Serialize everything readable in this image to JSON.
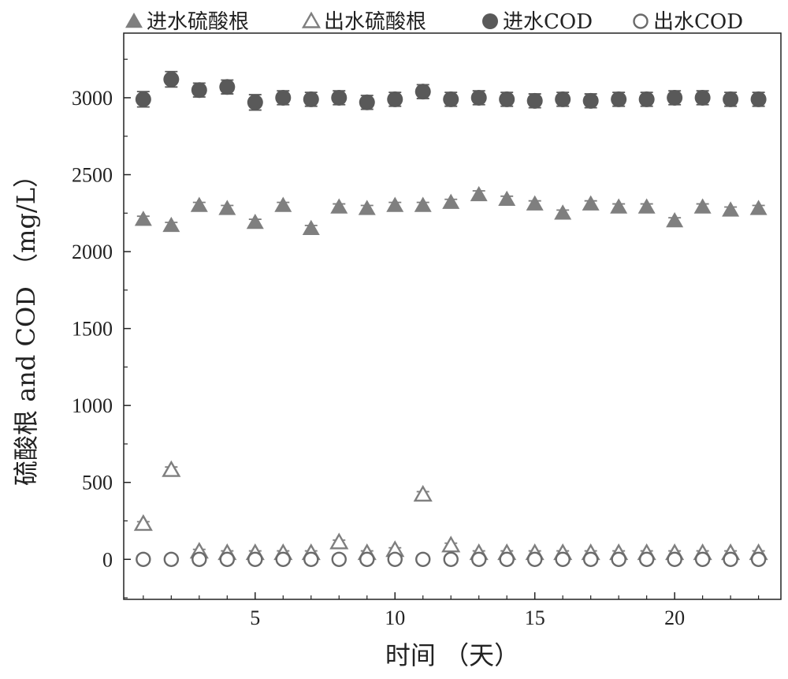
{
  "chart_data": {
    "type": "scatter",
    "xlabel": "时间 （天）",
    "ylabel": "硫酸根 and COD （mg/L）",
    "xlim": [
      0.3,
      23.8
    ],
    "ylim": [
      -260,
      3420
    ],
    "x_ticks": [
      5,
      10,
      15,
      20
    ],
    "y_ticks": [
      0,
      500,
      1000,
      1500,
      2000,
      2500,
      3000
    ],
    "grid": false,
    "legend_placement": "top",
    "x": [
      1,
      2,
      3,
      4,
      5,
      6,
      7,
      8,
      9,
      10,
      11,
      12,
      13,
      14,
      15,
      16,
      17,
      18,
      19,
      20,
      21,
      22,
      23
    ],
    "series": [
      {
        "name": "进水硫酸根",
        "marker": "triangle-filled",
        "color": "#7f7f7f",
        "values": [
          2210,
          2170,
          2300,
          2280,
          2190,
          2300,
          2150,
          2290,
          2280,
          2300,
          2300,
          2320,
          2370,
          2340,
          2310,
          2250,
          2310,
          2290,
          2290,
          2200,
          2290,
          2270,
          2280
        ],
        "errors": [
          20,
          20,
          20,
          20,
          20,
          20,
          20,
          20,
          20,
          20,
          20,
          20,
          25,
          20,
          20,
          20,
          20,
          20,
          20,
          20,
          20,
          20,
          20
        ]
      },
      {
        "name": "出水硫酸根",
        "marker": "triangle-open",
        "color": "#7f7f7f",
        "values": [
          230,
          580,
          50,
          40,
          40,
          40,
          40,
          110,
          40,
          60,
          420,
          90,
          40,
          40,
          40,
          40,
          40,
          40,
          40,
          40,
          40,
          40,
          40
        ],
        "errors": [
          15,
          20,
          15,
          15,
          15,
          15,
          15,
          15,
          15,
          15,
          20,
          15,
          15,
          15,
          15,
          15,
          15,
          15,
          15,
          15,
          15,
          15,
          15
        ]
      },
      {
        "name": "进水COD",
        "marker": "circle-filled",
        "color": "#595959",
        "values": [
          2990,
          3120,
          3050,
          3070,
          2970,
          3000,
          2990,
          3000,
          2970,
          2990,
          3040,
          2990,
          3000,
          2990,
          2980,
          2990,
          2980,
          2990,
          2990,
          3000,
          3000,
          2990,
          2990
        ],
        "errors": [
          50,
          50,
          45,
          45,
          50,
          45,
          45,
          45,
          45,
          45,
          45,
          45,
          45,
          45,
          45,
          45,
          45,
          45,
          45,
          45,
          45,
          45,
          45
        ]
      },
      {
        "name": "出水COD",
        "marker": "circle-open",
        "color": "#6a6a6a",
        "values": [
          0,
          0,
          0,
          0,
          0,
          0,
          0,
          0,
          0,
          0,
          0,
          0,
          0,
          0,
          0,
          0,
          0,
          0,
          0,
          0,
          0,
          0,
          0
        ],
        "errors": [
          0,
          0,
          25,
          25,
          25,
          25,
          25,
          0,
          25,
          25,
          0,
          25,
          25,
          25,
          25,
          25,
          25,
          25,
          25,
          25,
          25,
          25,
          25
        ]
      }
    ]
  }
}
